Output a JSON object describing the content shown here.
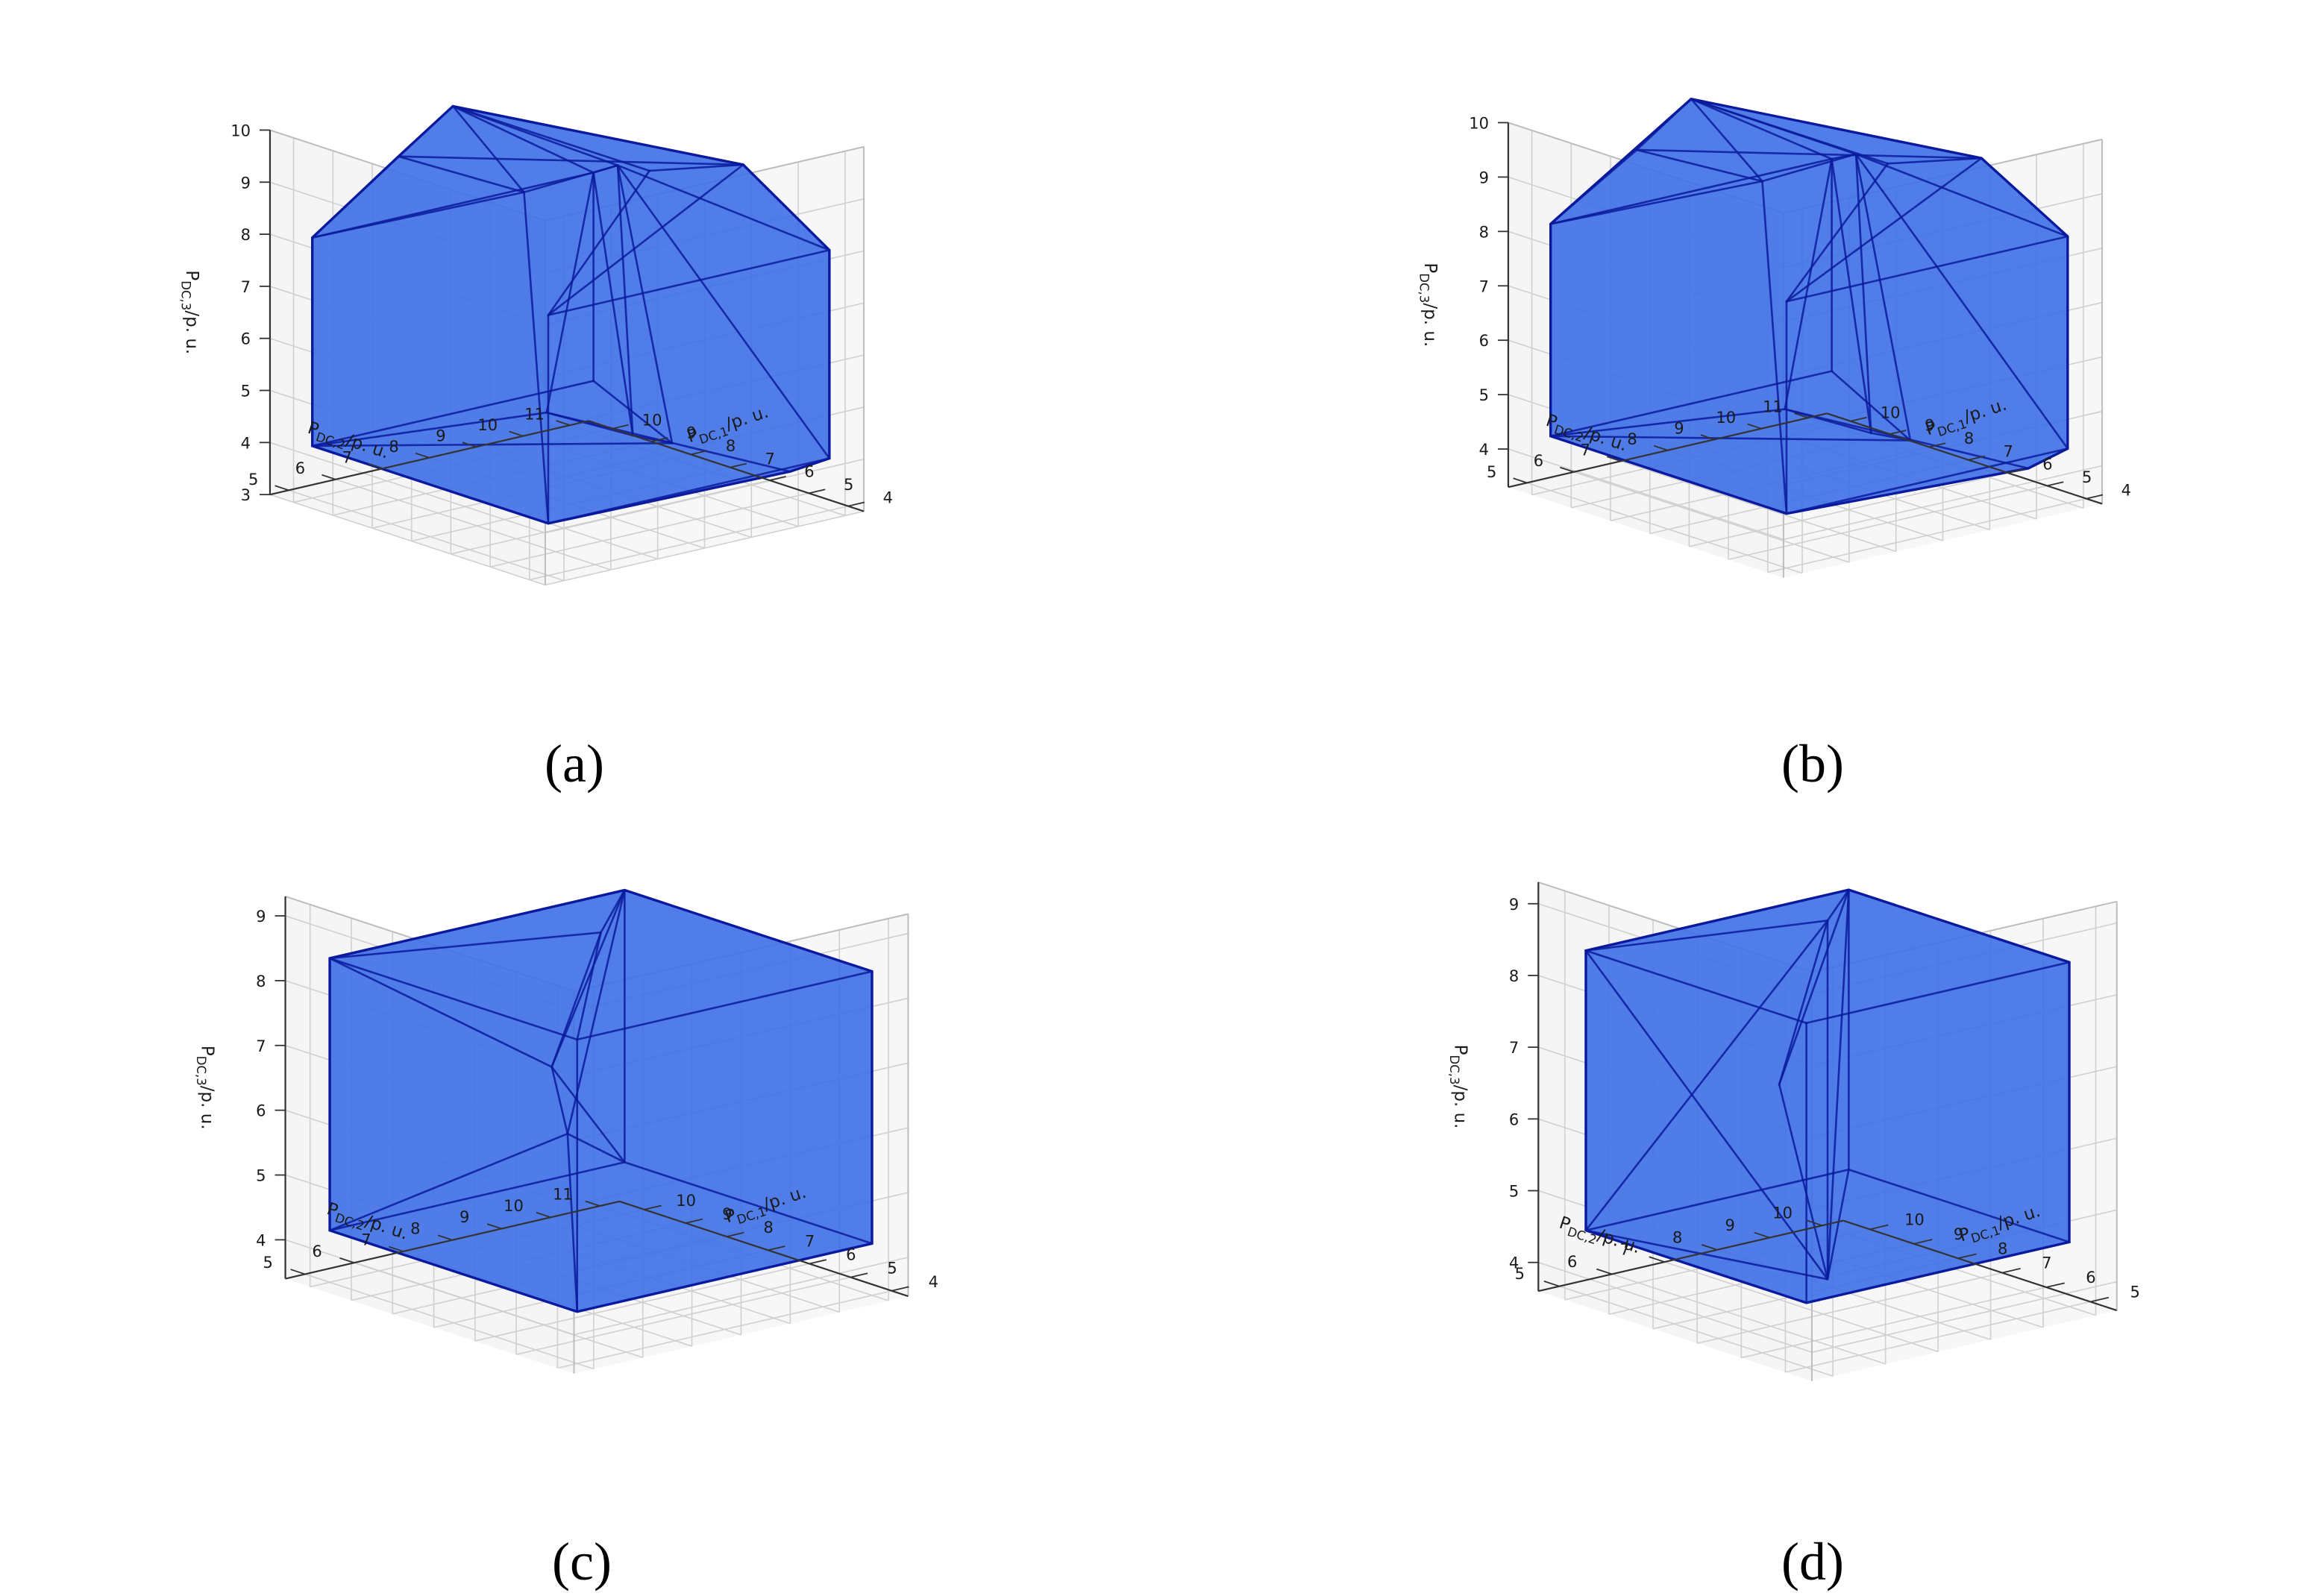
{
  "chart_data": [
    {
      "id": "a",
      "type": "3d-polytope",
      "panel_label": "(a)",
      "xlabel": "P_DC,1/p. u.",
      "ylabel": "P_DC,2/p. u.",
      "zlabel": "P_DC,3/p. u.",
      "x_ticks": [
        4,
        5,
        6,
        7,
        8,
        9,
        10
      ],
      "y_ticks": [
        5,
        6,
        7,
        8,
        9,
        10,
        11
      ],
      "z_ticks": [
        3,
        4,
        5,
        6,
        7,
        8,
        9,
        10
      ],
      "xlim": [
        3.6,
        10.6
      ],
      "ylim": [
        4.6,
        11.4
      ],
      "zlim": [
        3,
        10
      ],
      "face_color": "#3d6fe6",
      "edge_color": "#0b1a9e",
      "vertices": [
        [
          10,
          5,
          4
        ],
        [
          10,
          5,
          8
        ],
        [
          10,
          11,
          4
        ],
        [
          10,
          11,
          8
        ],
        [
          4,
          5,
          4
        ],
        [
          4,
          5,
          8
        ],
        [
          4,
          11,
          4
        ],
        [
          4,
          11,
          8
        ],
        [
          9,
          11,
          3.2
        ],
        [
          8,
          11,
          3.3
        ],
        [
          10,
          8,
          9.9
        ],
        [
          5,
          8,
          9.9
        ],
        [
          9,
          6,
          9.6
        ],
        [
          5,
          10,
          9.6
        ],
        [
          10,
          10,
          3.6
        ],
        [
          5,
          11,
          3.5
        ],
        [
          7,
          9,
          9.3
        ],
        [
          7,
          7,
          9.2
        ]
      ],
      "edges": [
        [
          0,
          1
        ],
        [
          1,
          3
        ],
        [
          3,
          2
        ],
        [
          2,
          0
        ],
        [
          1,
          12
        ],
        [
          12,
          10
        ],
        [
          10,
          3
        ],
        [
          10,
          16
        ],
        [
          16,
          3
        ],
        [
          16,
          17
        ],
        [
          17,
          12
        ],
        [
          17,
          10
        ],
        [
          1,
          17
        ],
        [
          3,
          8
        ],
        [
          8,
          9
        ],
        [
          9,
          2
        ],
        [
          16,
          8
        ],
        [
          16,
          9
        ],
        [
          0,
          9
        ],
        [
          0,
          14
        ],
        [
          3,
          14
        ],
        [
          14,
          8
        ],
        [
          12,
          13
        ],
        [
          13,
          11
        ],
        [
          11,
          10
        ],
        [
          11,
          5
        ],
        [
          5,
          13
        ],
        [
          13,
          7
        ],
        [
          7,
          5
        ],
        [
          7,
          6
        ],
        [
          6,
          15
        ],
        [
          15,
          14
        ],
        [
          4,
          6
        ],
        [
          4,
          5
        ],
        [
          4,
          0
        ],
        [
          17,
          4
        ],
        [
          16,
          6
        ],
        [
          7,
          16
        ]
      ]
    },
    {
      "id": "b",
      "type": "3d-polytope",
      "panel_label": "(b)",
      "xlabel": "P_DC,1/p. u.",
      "ylabel": "P_DC,2/p. u.",
      "zlabel": "P_DC,3/p. u.",
      "x_ticks": [
        4,
        5,
        6,
        7,
        8,
        9,
        10
      ],
      "y_ticks": [
        5,
        6,
        7,
        8,
        9,
        10,
        11
      ],
      "z_ticks": [
        4,
        5,
        6,
        7,
        8,
        9,
        10
      ],
      "xlim": [
        3.6,
        10.6
      ],
      "ylim": [
        4.6,
        11.4
      ],
      "zlim": [
        3.3,
        10
      ],
      "face_color": "#3d6fe6",
      "edge_color": "#0b1a9e",
      "vertices": [
        [
          10,
          5,
          4.3
        ],
        [
          10,
          5,
          8.2
        ],
        [
          10,
          11,
          4.3
        ],
        [
          10,
          11,
          8.2
        ],
        [
          4,
          5,
          4.3
        ],
        [
          4,
          5,
          8.2
        ],
        [
          4,
          11,
          4.3
        ],
        [
          4,
          11,
          8.2
        ],
        [
          9,
          11,
          3.4
        ],
        [
          8,
          11,
          3.5
        ],
        [
          10,
          8,
          9.9
        ],
        [
          5,
          8,
          9.9
        ],
        [
          9,
          6,
          9.6
        ],
        [
          5,
          10,
          9.6
        ],
        [
          10,
          10,
          3.8
        ],
        [
          5,
          11,
          3.7
        ],
        [
          7,
          9,
          9.4
        ],
        [
          7,
          7,
          9.3
        ]
      ],
      "edges": [
        [
          0,
          1
        ],
        [
          1,
          3
        ],
        [
          3,
          2
        ],
        [
          2,
          0
        ],
        [
          1,
          12
        ],
        [
          12,
          10
        ],
        [
          10,
          3
        ],
        [
          10,
          16
        ],
        [
          16,
          3
        ],
        [
          16,
          17
        ],
        [
          17,
          12
        ],
        [
          17,
          10
        ],
        [
          1,
          17
        ],
        [
          3,
          8
        ],
        [
          8,
          9
        ],
        [
          9,
          2
        ],
        [
          16,
          8
        ],
        [
          16,
          9
        ],
        [
          0,
          9
        ],
        [
          0,
          14
        ],
        [
          3,
          14
        ],
        [
          14,
          8
        ],
        [
          12,
          13
        ],
        [
          13,
          11
        ],
        [
          11,
          10
        ],
        [
          11,
          5
        ],
        [
          5,
          13
        ],
        [
          13,
          7
        ],
        [
          7,
          5
        ],
        [
          7,
          6
        ],
        [
          6,
          15
        ],
        [
          15,
          14
        ],
        [
          4,
          6
        ],
        [
          4,
          5
        ],
        [
          4,
          0
        ],
        [
          17,
          4
        ],
        [
          16,
          6
        ],
        [
          7,
          16
        ]
      ]
    },
    {
      "id": "c",
      "type": "3d-polytope",
      "panel_label": "(c)",
      "xlabel": "P_DC,1/p. u.",
      "ylabel": "P_DC,2/p. u.",
      "zlabel": "P_DC,3/p. u.",
      "x_ticks": [
        4,
        5,
        6,
        7,
        8,
        9,
        10
      ],
      "y_ticks": [
        5,
        6,
        7,
        8,
        9,
        10,
        11
      ],
      "z_ticks": [
        4,
        5,
        6,
        7,
        8,
        9
      ],
      "xlim": [
        3.6,
        10.6
      ],
      "ylim": [
        4.6,
        11.4
      ],
      "zlim": [
        3.4,
        9.3
      ],
      "face_color": "#3d6fe6",
      "edge_color": "#0b1a9e",
      "vertices": [
        [
          10,
          5,
          4.2
        ],
        [
          10,
          5,
          8.4
        ],
        [
          10,
          11,
          4.2
        ],
        [
          10,
          11,
          8.4
        ],
        [
          4,
          5,
          4.2
        ],
        [
          4,
          5,
          8.4
        ],
        [
          4,
          11,
          4.2
        ],
        [
          4,
          11,
          8.4
        ],
        [
          7,
          8,
          8.9
        ],
        [
          9,
          9,
          5.2
        ],
        [
          7,
          7,
          7.0
        ]
      ],
      "edges": [
        [
          0,
          1
        ],
        [
          1,
          3
        ],
        [
          3,
          2
        ],
        [
          2,
          0
        ],
        [
          1,
          8
        ],
        [
          8,
          3
        ],
        [
          8,
          10
        ],
        [
          10,
          1
        ],
        [
          10,
          3
        ],
        [
          10,
          2
        ],
        [
          10,
          9
        ],
        [
          9,
          3
        ],
        [
          9,
          2
        ],
        [
          9,
          0
        ],
        [
          1,
          5
        ],
        [
          5,
          4
        ],
        [
          4,
          0
        ],
        [
          4,
          6
        ],
        [
          6,
          2
        ],
        [
          5,
          7
        ],
        [
          7,
          3
        ],
        [
          7,
          6
        ],
        [
          5,
          8
        ],
        [
          4,
          9
        ]
      ]
    },
    {
      "id": "d",
      "type": "3d-polytope",
      "panel_label": "(d)",
      "xlabel": "P_DC,1/p. u.",
      "ylabel": "P_DC,2/p. u.",
      "zlabel": "P_DC,3/p. u.",
      "x_ticks": [
        5,
        6,
        7,
        8,
        9,
        10
      ],
      "y_ticks": [
        5,
        6,
        7,
        8,
        9,
        10
      ],
      "z_ticks": [
        4,
        5,
        6,
        7,
        8,
        9
      ],
      "xlim": [
        4.4,
        10.6
      ],
      "ylim": [
        4.6,
        10.4
      ],
      "zlim": [
        3.6,
        9.3
      ],
      "face_color": "#3d6fe6",
      "edge_color": "#0b1a9e",
      "vertices": [
        [
          10,
          5,
          4.5
        ],
        [
          10,
          5,
          8.4
        ],
        [
          10,
          10,
          4.5
        ],
        [
          10,
          10,
          8.4
        ],
        [
          5,
          5,
          4.5
        ],
        [
          5,
          5,
          8.4
        ],
        [
          5,
          10,
          4.5
        ],
        [
          5,
          10,
          8.4
        ],
        [
          7.5,
          7.5,
          8.9
        ],
        [
          7.5,
          7.5,
          3.9
        ],
        [
          8,
          7,
          6.6
        ]
      ],
      "edges": [
        [
          0,
          1
        ],
        [
          1,
          3
        ],
        [
          3,
          2
        ],
        [
          2,
          0
        ],
        [
          1,
          8
        ],
        [
          8,
          3
        ],
        [
          8,
          9
        ],
        [
          9,
          0
        ],
        [
          9,
          2
        ],
        [
          10,
          8
        ],
        [
          10,
          9
        ],
        [
          1,
          9
        ],
        [
          3,
          9
        ],
        [
          1,
          5
        ],
        [
          5,
          4
        ],
        [
          4,
          0
        ],
        [
          4,
          6
        ],
        [
          6,
          2
        ],
        [
          5,
          7
        ],
        [
          7,
          3
        ],
        [
          7,
          6
        ],
        [
          8,
          0
        ],
        [
          10,
          3
        ]
      ]
    }
  ]
}
